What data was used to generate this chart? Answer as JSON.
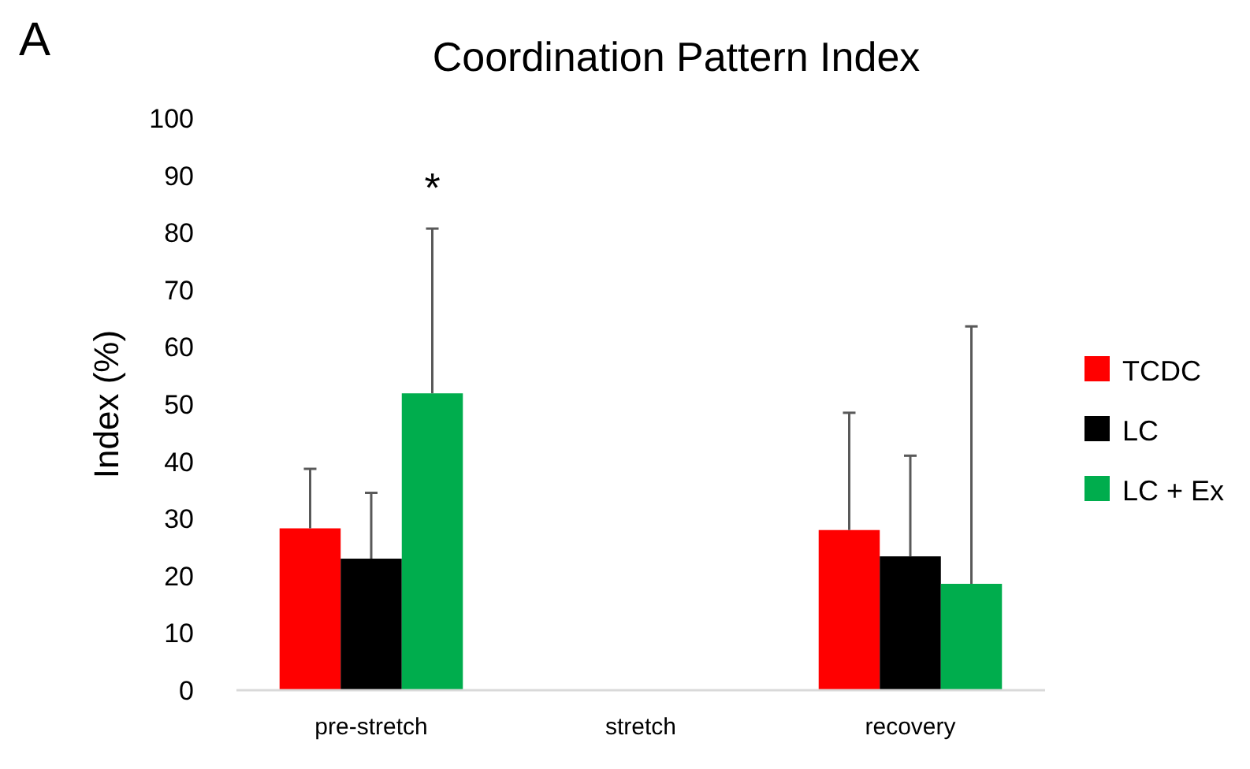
{
  "chart_data": {
    "type": "bar",
    "title": "Coordination Pattern Index",
    "ylabel": "Index (%)",
    "categories": [
      "pre-stretch",
      "stretch",
      "recovery"
    ],
    "series": [
      {
        "name": "TCDC",
        "color": "#ff0000",
        "values": [
          28.3,
          null,
          28.0
        ],
        "errors": [
          [
            28.3,
            38.7
          ],
          null,
          [
            28.0,
            48.5
          ]
        ]
      },
      {
        "name": "LC",
        "color": "#000000",
        "values": [
          23.0,
          null,
          23.4
        ],
        "errors": [
          [
            23.0,
            34.5
          ],
          null,
          [
            23.4,
            41.0
          ]
        ]
      },
      {
        "name": "LC + Ex",
        "color": "#00ad4d",
        "values": [
          51.9,
          null,
          18.6
        ],
        "errors": [
          [
            51.9,
            80.7
          ],
          null,
          [
            18.6,
            63.6
          ]
        ]
      }
    ],
    "ylim": [
      0,
      100
    ],
    "yticks": [
      0,
      10,
      20,
      30,
      40,
      50,
      60,
      70,
      80,
      90,
      100
    ],
    "grid": false,
    "legend": "right",
    "annotations": [
      "A",
      "*"
    ]
  }
}
